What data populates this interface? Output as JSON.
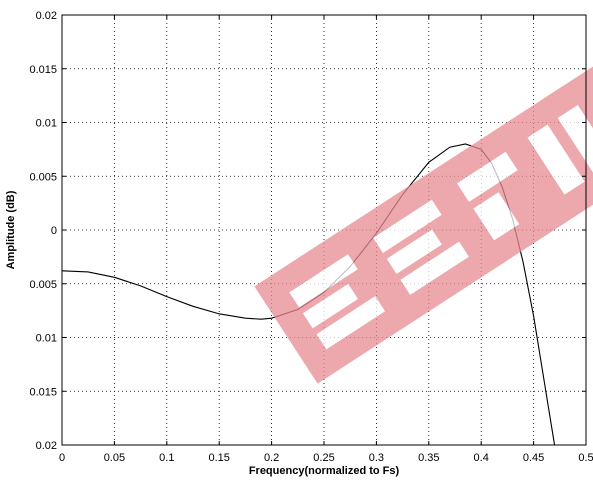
{
  "chart_data": {
    "type": "line",
    "xlabel": "Frequency(normalized to Fs)",
    "ylabel": "Amplitude (dB)",
    "xlim": [
      0,
      0.5
    ],
    "ylim": [
      -0.02,
      0.02
    ],
    "grid": true,
    "x_ticks": [
      "0",
      "0.05",
      "0.1",
      "0.15",
      "0.2",
      "0.25",
      "0.3",
      "0.35",
      "0.4",
      "0.45",
      "0.5"
    ],
    "y_ticks": [
      "0.02",
      "0.015",
      "0.01",
      "0.005",
      "0",
      "0.005",
      "0.01",
      "0.015",
      "0.02"
    ],
    "series": [
      {
        "color": "#000000",
        "x": [
          0,
          0.025,
          0.05,
          0.075,
          0.1,
          0.125,
          0.15,
          0.175,
          0.19,
          0.2,
          0.225,
          0.25,
          0.275,
          0.3,
          0.325,
          0.35,
          0.37,
          0.385,
          0.4,
          0.41,
          0.42,
          0.43,
          0.44,
          0.45,
          0.46,
          0.47
        ],
        "y": [
          -0.0038,
          -0.0039,
          -0.0044,
          -0.0052,
          -0.0062,
          -0.0071,
          -0.0078,
          -0.0082,
          -0.0083,
          -0.0082,
          -0.0074,
          -0.0058,
          -0.0034,
          -0.0003,
          0.0033,
          0.0063,
          0.0077,
          0.008,
          0.0075,
          0.0062,
          0.004,
          0.001,
          -0.003,
          -0.008,
          -0.014,
          -0.02
        ]
      }
    ]
  },
  "watermark": {
    "text": "EEPW",
    "color": "#e88b93"
  }
}
